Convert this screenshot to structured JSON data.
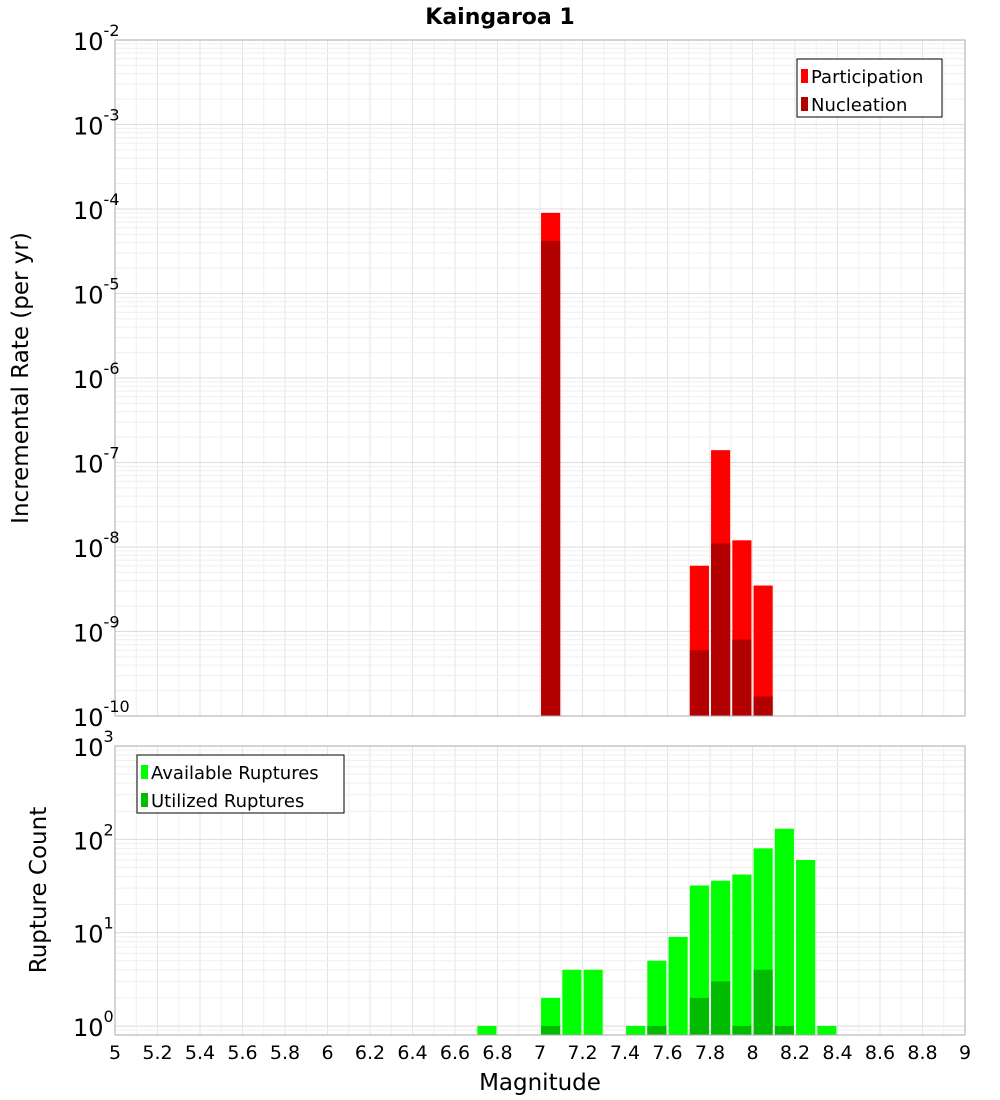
{
  "chart_data": [
    {
      "type": "bar",
      "title": "Kaingaroa 1",
      "xlabel": "",
      "ylabel": "Incremental Rate (per yr)",
      "yscale": "log",
      "xlim": [
        5,
        9
      ],
      "ylim": [
        1e-10,
        0.01
      ],
      "grid": true,
      "legend_position": "top-right",
      "bar_width": 0.09,
      "series": [
        {
          "name": "Participation",
          "color": "#ff0000",
          "x": [
            7.05,
            7.75,
            7.85,
            7.95,
            8.05
          ],
          "values": [
            9e-05,
            6e-09,
            1.4e-07,
            1.2e-08,
            3.5e-09
          ]
        },
        {
          "name": "Nucleation",
          "color": "#b30000",
          "x": [
            7.05,
            7.75,
            7.85,
            7.95,
            8.05
          ],
          "values": [
            4.2e-05,
            6e-10,
            1.1e-08,
            8e-10,
            1.7e-10
          ]
        }
      ]
    },
    {
      "type": "bar",
      "title": "",
      "xlabel": "Magnitude",
      "ylabel": "Rupture Count",
      "yscale": "log",
      "xlim": [
        5,
        9
      ],
      "ylim": [
        0.8,
        1000
      ],
      "grid": true,
      "legend_position": "top-left",
      "bar_width": 0.09,
      "x_ticks": [
        "5",
        "5.2",
        "5.4",
        "5.6",
        "5.8",
        "6",
        "6.2",
        "6.4",
        "6.6",
        "6.8",
        "7",
        "7.2",
        "7.4",
        "7.6",
        "7.8",
        "8",
        "8.2",
        "8.4",
        "8.6",
        "8.8",
        "9"
      ],
      "series": [
        {
          "name": "Available Ruptures",
          "color": "#00ff00",
          "x": [
            6.75,
            7.05,
            7.15,
            7.25,
            7.45,
            7.55,
            7.65,
            7.75,
            7.85,
            7.95,
            8.05,
            8.15,
            8.25,
            8.35
          ],
          "values": [
            1,
            2,
            4,
            4,
            1,
            5,
            9,
            32,
            36,
            42,
            80,
            130,
            60,
            1
          ]
        },
        {
          "name": "Utilized Ruptures",
          "color": "#00bb00",
          "x": [
            7.05,
            7.55,
            7.75,
            7.85,
            7.95,
            8.05,
            8.15
          ],
          "values": [
            1,
            1,
            2,
            3,
            1,
            4,
            1
          ]
        }
      ]
    }
  ]
}
